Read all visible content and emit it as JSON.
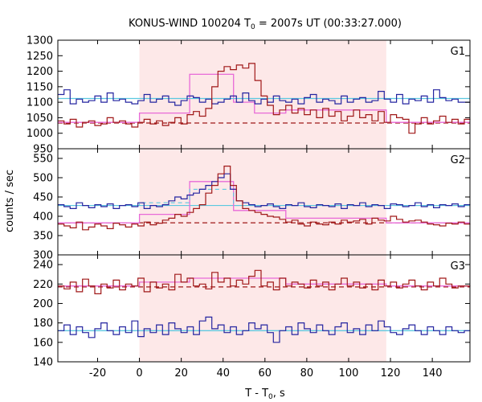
{
  "chart_data": {
    "type": "line",
    "title_main": "KONUS-WIND 100204 T",
    "title_sub": "0",
    "title_rest": " = 2007s UT (00:33:27.000)",
    "xlabel_main": "T - T",
    "xlabel_sub": "0",
    "xlabel_rest": ", s",
    "ylabel": "counts / sec",
    "xlim": [
      -39,
      158
    ],
    "xticks": [
      -20,
      0,
      20,
      40,
      60,
      80,
      100,
      120,
      140
    ],
    "shaded_region": [
      0,
      118
    ],
    "colors": {
      "shade": "#fde8e8",
      "rate_blue": "#2424a0",
      "rate_red": "#a01818",
      "background_fit": "#5bc8e0",
      "model_pink": "#e86ad8"
    },
    "panels": [
      {
        "name": "G1",
        "ylim": [
          950,
          1300
        ],
        "yticks": [
          950,
          1000,
          1050,
          1100,
          1150,
          1200,
          1250,
          1300
        ],
        "bin_start": -39,
        "bin_width": 2.944,
        "blue_values": [
          1125,
          1140,
          1095,
          1110,
          1100,
          1105,
          1120,
          1100,
          1130,
          1105,
          1110,
          1100,
          1095,
          1105,
          1125,
          1100,
          1110,
          1120,
          1100,
          1090,
          1105,
          1120,
          1115,
          1100,
          1110,
          1095,
          1100,
          1110,
          1120,
          1100,
          1130,
          1105,
          1095,
          1110,
          1100,
          1120,
          1105,
          1100,
          1110,
          1095,
          1115,
          1125,
          1100,
          1110,
          1105,
          1095,
          1120,
          1100,
          1110,
          1115,
          1100,
          1105,
          1135,
          1110,
          1100,
          1125,
          1095,
          1110,
          1105,
          1120,
          1100,
          1140,
          1115,
          1105,
          1110,
          1100,
          1100
        ],
        "red_values": [
          1040,
          1030,
          1045,
          1020,
          1035,
          1040,
          1025,
          1030,
          1050,
          1035,
          1040,
          1030,
          1020,
          1035,
          1045,
          1030,
          1040,
          1025,
          1035,
          1050,
          1030,
          1060,
          1070,
          1055,
          1080,
          1150,
          1200,
          1215,
          1205,
          1220,
          1210,
          1225,
          1170,
          1120,
          1090,
          1060,
          1075,
          1090,
          1065,
          1080,
          1060,
          1075,
          1050,
          1080,
          1055,
          1070,
          1040,
          1055,
          1075,
          1050,
          1060,
          1040,
          1070,
          1035,
          1060,
          1050,
          1045,
          1000,
          1030,
          1050,
          1030,
          1040,
          1055,
          1035,
          1045,
          1030,
          1045
        ],
        "blue_fit": 1112,
        "red_fit_dashed": 1033,
        "blue_model": [
          {
            "x0": -39,
            "x1": 158,
            "y": 1112
          }
        ],
        "pink_model": [
          {
            "x0": -39,
            "x1": 0,
            "y": 1035
          },
          {
            "x0": 0,
            "x1": 24,
            "y": 1065
          },
          {
            "x0": 24,
            "x1": 45,
            "y": 1190
          },
          {
            "x0": 45,
            "x1": 55,
            "y": 1100
          },
          {
            "x0": 55,
            "x1": 70,
            "y": 1065
          },
          {
            "x0": 70,
            "x1": 118,
            "y": 1075
          },
          {
            "x0": 118,
            "x1": 158,
            "y": 1035
          }
        ]
      },
      {
        "name": "G2",
        "ylim": [
          300,
          575
        ],
        "yticks": [
          300,
          350,
          400,
          450,
          500,
          550
        ],
        "bin_start": -39,
        "bin_width": 2.944,
        "blue_values": [
          430,
          425,
          420,
          435,
          428,
          422,
          430,
          425,
          432,
          420,
          428,
          430,
          425,
          435,
          420,
          428,
          425,
          430,
          440,
          450,
          445,
          455,
          460,
          470,
          480,
          490,
          500,
          510,
          470,
          440,
          435,
          430,
          425,
          428,
          432,
          425,
          420,
          430,
          428,
          435,
          425,
          422,
          430,
          428,
          425,
          432,
          420,
          430,
          428,
          435,
          425,
          430,
          428,
          420,
          432,
          430,
          425,
          428,
          435,
          425,
          430,
          422,
          430,
          428,
          432,
          425,
          430
        ],
        "red_values": [
          380,
          375,
          370,
          385,
          365,
          372,
          380,
          375,
          368,
          382,
          378,
          372,
          380,
          375,
          385,
          378,
          382,
          390,
          395,
          405,
          400,
          410,
          420,
          430,
          460,
          480,
          510,
          530,
          480,
          440,
          420,
          415,
          410,
          405,
          400,
          398,
          392,
          385,
          390,
          380,
          375,
          385,
          380,
          378,
          385,
          380,
          390,
          385,
          388,
          392,
          380,
          395,
          390,
          388,
          400,
          392,
          385,
          388,
          390,
          385,
          380,
          378,
          375,
          382,
          380,
          385,
          380
        ],
        "blue_fit": 428,
        "red_fit_dashed": 383,
        "blue_model": [
          {
            "x0": -39,
            "x1": 0,
            "y": 428
          },
          {
            "x0": 0,
            "x1": 24,
            "y": 435
          },
          {
            "x0": 24,
            "x1": 45,
            "y": 470
          },
          {
            "x0": 45,
            "x1": 158,
            "y": 428
          }
        ],
        "pink_model": [
          {
            "x0": -39,
            "x1": 0,
            "y": 383
          },
          {
            "x0": 0,
            "x1": 24,
            "y": 405
          },
          {
            "x0": 24,
            "x1": 45,
            "y": 490
          },
          {
            "x0": 45,
            "x1": 70,
            "y": 415
          },
          {
            "x0": 70,
            "x1": 118,
            "y": 395
          },
          {
            "x0": 118,
            "x1": 158,
            "y": 383
          }
        ]
      },
      {
        "name": "G3",
        "ylim": [
          140,
          250
        ],
        "yticks": [
          140,
          160,
          180,
          200,
          220,
          240
        ],
        "bin_start": -39,
        "bin_width": 2.944,
        "blue_values": [
          172,
          178,
          168,
          176,
          170,
          165,
          174,
          180,
          172,
          168,
          176,
          170,
          182,
          166,
          174,
          170,
          178,
          168,
          180,
          174,
          170,
          176,
          168,
          182,
          186,
          174,
          178,
          170,
          176,
          168,
          172,
          180,
          174,
          178,
          170,
          160,
          172,
          176,
          168,
          180,
          174,
          170,
          178,
          172,
          168,
          176,
          180,
          170,
          174,
          168,
          178,
          172,
          182,
          176,
          170,
          168,
          174,
          178,
          172,
          168,
          176,
          172,
          168,
          176,
          172,
          170,
          172
        ],
        "red_values": [
          218,
          215,
          222,
          212,
          225,
          218,
          210,
          220,
          216,
          224,
          214,
          220,
          218,
          226,
          212,
          222,
          216,
          220,
          214,
          230,
          222,
          226,
          218,
          220,
          215,
          232,
          222,
          226,
          218,
          224,
          220,
          228,
          234,
          218,
          222,
          214,
          226,
          218,
          222,
          220,
          216,
          224,
          218,
          222,
          214,
          220,
          226,
          218,
          222,
          216,
          220,
          214,
          224,
          218,
          222,
          216,
          220,
          224,
          218,
          214,
          222,
          218,
          226,
          220,
          216,
          218,
          218
        ],
        "blue_fit": 172,
        "red_fit_dashed": 217,
        "blue_model": [
          {
            "x0": -39,
            "x1": 158,
            "y": 172
          }
        ],
        "pink_model": [
          {
            "x0": -39,
            "x1": 0,
            "y": 218
          },
          {
            "x0": 0,
            "x1": 24,
            "y": 222
          },
          {
            "x0": 24,
            "x1": 70,
            "y": 226
          },
          {
            "x0": 70,
            "x1": 118,
            "y": 220
          },
          {
            "x0": 118,
            "x1": 158,
            "y": 218
          }
        ]
      }
    ]
  }
}
